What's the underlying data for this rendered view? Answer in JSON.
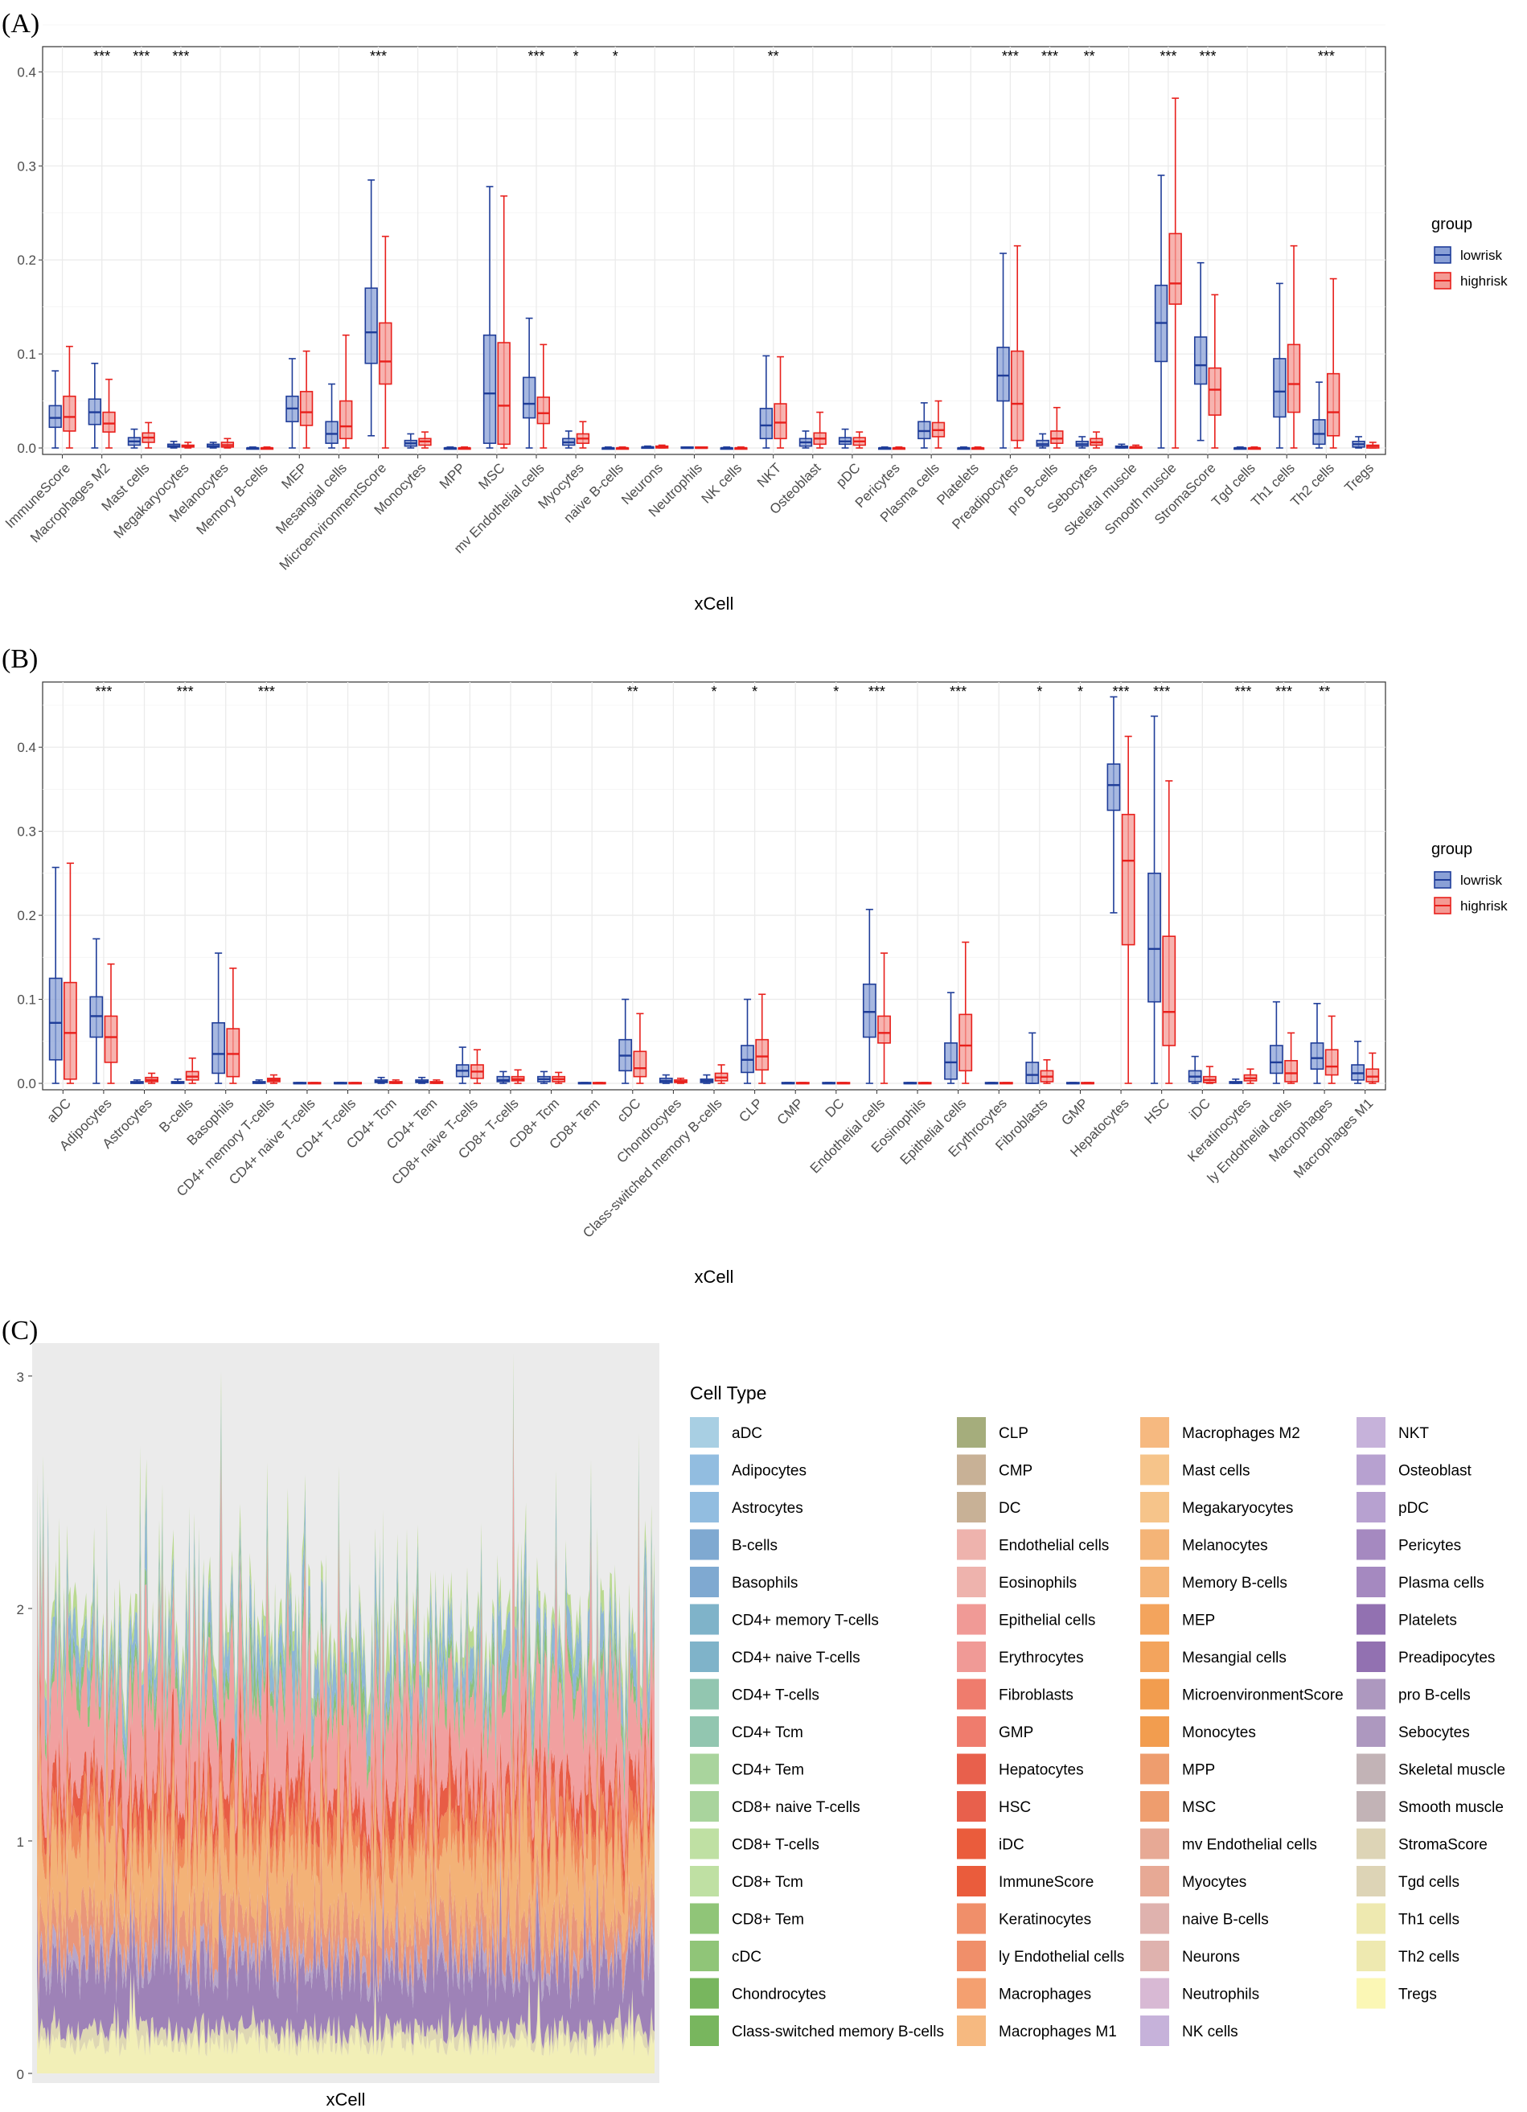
{
  "panels": [
    {
      "label": "(A)",
      "type": "box",
      "xlabel": "xCell",
      "legend": {
        "title": "group",
        "items": [
          "lowrisk",
          "highrisk"
        ]
      },
      "colors": {
        "lowrisk": "#1f3d99",
        "highrisk": "#e8201c"
      },
      "ylim": [
        0,
        0.42
      ],
      "yticks": [
        "0.0",
        "0.1",
        "0.2",
        "0.3",
        "0.4"
      ],
      "categories": [
        "ImmuneScore",
        "Macrophages M2",
        "Mast cells",
        "Megakaryocytes",
        "Melanocytes",
        "Memory B-cells",
        "MEP",
        "Mesangial cells",
        "MicroenvironmentScore",
        "Monocytes",
        "MPP",
        "MSC",
        "mv Endothelial cells",
        "Myocytes",
        "naive B-cells",
        "Neurons",
        "Neutrophils",
        "NK cells",
        "NKT",
        "Osteoblast",
        "pDC",
        "Pericytes",
        "Plasma cells",
        "Platelets",
        "Preadipocytes",
        "pro B-cells",
        "Sebocytes",
        "Skeletal muscle",
        "Smooth muscle",
        "StromaScore",
        "Tgd cells",
        "Th1 cells",
        "Th2 cells",
        "Tregs"
      ],
      "significance": [
        "",
        "***",
        "***",
        "***",
        "",
        "",
        "",
        "",
        "***",
        "",
        "",
        "",
        "***",
        "*",
        "*",
        "",
        "",
        "",
        "**",
        "",
        "",
        "",
        "",
        "",
        "***",
        "***",
        "**",
        "",
        "***",
        "***",
        "",
        "",
        "***",
        ""
      ],
      "lowrisk": [
        [
          0,
          0.022,
          0.032,
          0.045,
          0.082
        ],
        [
          0,
          0.025,
          0.038,
          0.052,
          0.09
        ],
        [
          0,
          0.003,
          0.007,
          0.011,
          0.02
        ],
        [
          0,
          0.001,
          0.002,
          0.004,
          0.007
        ],
        [
          0,
          0.001,
          0.002,
          0.004,
          0.006
        ],
        [
          0,
          0,
          0,
          0,
          0.001
        ],
        [
          0,
          0.028,
          0.042,
          0.055,
          0.095
        ],
        [
          0,
          0.005,
          0.015,
          0.028,
          0.068
        ],
        [
          0.013,
          0.09,
          0.123,
          0.17,
          0.285
        ],
        [
          0,
          0.002,
          0.005,
          0.008,
          0.015
        ],
        [
          0,
          0,
          0,
          0,
          0.001
        ],
        [
          0,
          0.005,
          0.058,
          0.12,
          0.278
        ],
        [
          0,
          0.032,
          0.047,
          0.075,
          0.138
        ],
        [
          0,
          0.003,
          0.006,
          0.01,
          0.018
        ],
        [
          0,
          0,
          0,
          0,
          0.001
        ],
        [
          0,
          0,
          0.001,
          0.001,
          0.002
        ],
        [
          0,
          0,
          0,
          0.001,
          0.001
        ],
        [
          0,
          0,
          0,
          0,
          0.001
        ],
        [
          0,
          0.01,
          0.024,
          0.042,
          0.098
        ],
        [
          0,
          0.002,
          0.006,
          0.01,
          0.018
        ],
        [
          0,
          0.004,
          0.007,
          0.011,
          0.02
        ],
        [
          0,
          0,
          0,
          0,
          0.001
        ],
        [
          0,
          0.01,
          0.018,
          0.028,
          0.048
        ],
        [
          0,
          0,
          0,
          0,
          0.001
        ],
        [
          0,
          0.05,
          0.077,
          0.107,
          0.207
        ],
        [
          0,
          0.002,
          0.004,
          0.008,
          0.015
        ],
        [
          0,
          0.002,
          0.004,
          0.007,
          0.012
        ],
        [
          0,
          0,
          0.001,
          0.002,
          0.004
        ],
        [
          0,
          0.092,
          0.133,
          0.173,
          0.29
        ],
        [
          0.008,
          0.068,
          0.088,
          0.118,
          0.197
        ],
        [
          0,
          0,
          0,
          0,
          0.001
        ],
        [
          0,
          0.033,
          0.06,
          0.095,
          0.175
        ],
        [
          0,
          0.004,
          0.015,
          0.03,
          0.07
        ],
        [
          0,
          0.001,
          0.004,
          0.007,
          0.012
        ]
      ],
      "highrisk": [
        [
          0,
          0.018,
          0.033,
          0.055,
          0.108
        ],
        [
          0,
          0.017,
          0.026,
          0.038,
          0.073
        ],
        [
          0,
          0.006,
          0.011,
          0.016,
          0.027
        ],
        [
          0,
          0.001,
          0.002,
          0.003,
          0.006
        ],
        [
          0,
          0.001,
          0.003,
          0.006,
          0.01
        ],
        [
          0,
          0,
          0,
          0,
          0.001
        ],
        [
          0,
          0.024,
          0.038,
          0.06,
          0.103
        ],
        [
          0,
          0.01,
          0.023,
          0.05,
          0.12
        ],
        [
          0,
          0.068,
          0.092,
          0.133,
          0.225
        ],
        [
          0,
          0.003,
          0.007,
          0.01,
          0.017
        ],
        [
          0,
          0,
          0,
          0,
          0.001
        ],
        [
          0,
          0.004,
          0.045,
          0.112,
          0.268
        ],
        [
          0,
          0.026,
          0.037,
          0.054,
          0.11
        ],
        [
          0,
          0.005,
          0.01,
          0.015,
          0.028
        ],
        [
          0,
          0,
          0,
          0,
          0.001
        ],
        [
          0,
          0,
          0.001,
          0.002,
          0.003
        ],
        [
          0,
          0,
          0,
          0.001,
          0.001
        ],
        [
          0,
          0,
          0,
          0,
          0.001
        ],
        [
          0,
          0.01,
          0.027,
          0.047,
          0.097
        ],
        [
          0,
          0.004,
          0.01,
          0.016,
          0.038
        ],
        [
          0,
          0.003,
          0.007,
          0.011,
          0.017
        ],
        [
          0,
          0,
          0,
          0,
          0.001
        ],
        [
          0,
          0.012,
          0.019,
          0.027,
          0.05
        ],
        [
          0,
          0,
          0,
          0,
          0.001
        ],
        [
          0,
          0.008,
          0.047,
          0.103,
          0.215
        ],
        [
          0,
          0.005,
          0.01,
          0.018,
          0.043
        ],
        [
          0,
          0.003,
          0.006,
          0.01,
          0.017
        ],
        [
          0,
          0,
          0.001,
          0.001,
          0.003
        ],
        [
          0,
          0.153,
          0.175,
          0.228,
          0.372
        ],
        [
          0,
          0.035,
          0.062,
          0.085,
          0.163
        ],
        [
          0,
          0,
          0,
          0,
          0.001
        ],
        [
          0,
          0.038,
          0.068,
          0.11,
          0.215
        ],
        [
          0,
          0.013,
          0.038,
          0.079,
          0.18
        ],
        [
          0,
          0,
          0.002,
          0.003,
          0.006
        ]
      ]
    },
    {
      "label": "(B)",
      "type": "box",
      "xlabel": "xCell",
      "legend": {
        "title": "group",
        "items": [
          "lowrisk",
          "highrisk"
        ]
      },
      "colors": {
        "lowrisk": "#1f3d99",
        "highrisk": "#e8201c"
      },
      "ylim": [
        0,
        0.47
      ],
      "yticks": [
        "0.0",
        "0.1",
        "0.2",
        "0.3",
        "0.4"
      ],
      "categories": [
        "aDC",
        "Adipocytes",
        "Astrocytes",
        "B-cells",
        "Basophils",
        "CD4+ memory T-cells",
        "CD4+ naive T-cells",
        "CD4+ T-cells",
        "CD4+ Tcm",
        "CD4+ Tem",
        "CD8+ naive T-cells",
        "CD8+ T-cells",
        "CD8+ Tcm",
        "CD8+ Tem",
        "cDC",
        "Chondrocytes",
        "Class-switched memory B-cells",
        "CLP",
        "CMP",
        "DC",
        "Endothelial cells",
        "Eosinophils",
        "Epithelial cells",
        "Erythrocytes",
        "Fibroblasts",
        "GMP",
        "Hepatocytes",
        "HSC",
        "iDC",
        "Keratinocytes",
        "ly Endothelial cells",
        "Macrophages",
        "Macrophages M1"
      ],
      "significance": [
        "",
        "***",
        "",
        "***",
        "",
        "***",
        "",
        "",
        "",
        "",
        "",
        "",
        "",
        "",
        "**",
        "",
        "*",
        "*",
        "",
        "*",
        "***",
        "",
        "***",
        "",
        "*",
        "*",
        "***",
        "***",
        "",
        "***",
        "***",
        "**",
        ""
      ],
      "lowrisk": [
        [
          0,
          0.028,
          0.072,
          0.125,
          0.257
        ],
        [
          0,
          0.055,
          0.08,
          0.103,
          0.172
        ],
        [
          0,
          0,
          0.001,
          0.002,
          0.004
        ],
        [
          0,
          0,
          0.001,
          0.002,
          0.005
        ],
        [
          0,
          0.012,
          0.035,
          0.072,
          0.155
        ],
        [
          0,
          0,
          0.001,
          0.002,
          0.004
        ],
        [
          0,
          0,
          0,
          0.001,
          0.001
        ],
        [
          0,
          0,
          0,
          0.001,
          0.001
        ],
        [
          0,
          0.001,
          0.002,
          0.004,
          0.007
        ],
        [
          0,
          0.001,
          0.002,
          0.004,
          0.007
        ],
        [
          0,
          0.008,
          0.015,
          0.022,
          0.043
        ],
        [
          0,
          0.002,
          0.004,
          0.008,
          0.014
        ],
        [
          0,
          0.002,
          0.005,
          0.008,
          0.014
        ],
        [
          0,
          0,
          0,
          0.001,
          0.001
        ],
        [
          0,
          0.015,
          0.033,
          0.052,
          0.1
        ],
        [
          0,
          0.001,
          0.003,
          0.006,
          0.01
        ],
        [
          0,
          0.001,
          0.003,
          0.005,
          0.01
        ],
        [
          0,
          0.013,
          0.028,
          0.045,
          0.1
        ],
        [
          0,
          0,
          0,
          0.001,
          0.001
        ],
        [
          0,
          0,
          0,
          0.001,
          0.001
        ],
        [
          0,
          0.055,
          0.085,
          0.118,
          0.207
        ],
        [
          0,
          0,
          0,
          0.001,
          0.001
        ],
        [
          0,
          0.005,
          0.025,
          0.048,
          0.108
        ],
        [
          0,
          0,
          0,
          0.001,
          0.001
        ],
        [
          0,
          0,
          0.01,
          0.025,
          0.06
        ],
        [
          0,
          0,
          0,
          0.001,
          0.001
        ],
        [
          0.203,
          0.325,
          0.355,
          0.38,
          0.46
        ],
        [
          0,
          0.097,
          0.16,
          0.25,
          0.437
        ],
        [
          0,
          0.002,
          0.008,
          0.015,
          0.032
        ],
        [
          0,
          0,
          0.001,
          0.002,
          0.005
        ],
        [
          0,
          0.012,
          0.025,
          0.045,
          0.097
        ],
        [
          0,
          0.017,
          0.03,
          0.048,
          0.095
        ],
        [
          0,
          0.004,
          0.012,
          0.022,
          0.05
        ]
      ],
      "highrisk": [
        [
          0,
          0.005,
          0.06,
          0.12,
          0.262
        ],
        [
          0,
          0.025,
          0.055,
          0.08,
          0.142
        ],
        [
          0,
          0.002,
          0.004,
          0.007,
          0.012
        ],
        [
          0,
          0.004,
          0.008,
          0.014,
          0.03
        ],
        [
          0,
          0.008,
          0.035,
          0.065,
          0.137
        ],
        [
          0,
          0.002,
          0.004,
          0.006,
          0.01
        ],
        [
          0,
          0,
          0,
          0.001,
          0.001
        ],
        [
          0,
          0,
          0,
          0.001,
          0.001
        ],
        [
          0,
          0,
          0.001,
          0.002,
          0.004
        ],
        [
          0,
          0,
          0.001,
          0.002,
          0.004
        ],
        [
          0,
          0.006,
          0.014,
          0.022,
          0.04
        ],
        [
          0,
          0.003,
          0.005,
          0.008,
          0.016
        ],
        [
          0,
          0.002,
          0.005,
          0.008,
          0.013
        ],
        [
          0,
          0,
          0,
          0.001,
          0.001
        ],
        [
          0,
          0.008,
          0.018,
          0.038,
          0.083
        ],
        [
          0,
          0.001,
          0.002,
          0.004,
          0.006
        ],
        [
          0,
          0.003,
          0.007,
          0.012,
          0.022
        ],
        [
          0,
          0.016,
          0.032,
          0.052,
          0.106
        ],
        [
          0,
          0,
          0,
          0.001,
          0.001
        ],
        [
          0,
          0,
          0,
          0.001,
          0.001
        ],
        [
          0,
          0.048,
          0.06,
          0.08,
          0.155
        ],
        [
          0,
          0,
          0,
          0.001,
          0.001
        ],
        [
          0,
          0.015,
          0.045,
          0.082,
          0.168
        ],
        [
          0,
          0,
          0,
          0.001,
          0.001
        ],
        [
          0,
          0.002,
          0.008,
          0.015,
          0.028
        ],
        [
          0,
          0,
          0,
          0.001,
          0.001
        ],
        [
          0,
          0.165,
          0.265,
          0.32,
          0.413
        ],
        [
          0,
          0.045,
          0.085,
          0.175,
          0.36
        ],
        [
          0,
          0.001,
          0.004,
          0.008,
          0.02
        ],
        [
          0,
          0.003,
          0.006,
          0.01,
          0.017
        ],
        [
          0,
          0.002,
          0.012,
          0.027,
          0.06
        ],
        [
          0,
          0.01,
          0.02,
          0.04,
          0.08
        ],
        [
          0,
          0.002,
          0.008,
          0.017,
          0.036
        ]
      ]
    },
    {
      "label": "(C)",
      "type": "stacked-area",
      "xlabel": "xCell",
      "ylim": [
        0,
        3.1
      ],
      "yticks": [
        "0",
        "1",
        "2",
        "3"
      ],
      "legend": {
        "title": "Cell Type",
        "columns": [
          [
            "aDC",
            "Adipocytes",
            "Astrocytes",
            "B-cells",
            "Basophils",
            "CD4+ memory T-cells",
            "CD4+ naive T-cells",
            "CD4+ T-cells",
            "CD4+ Tcm",
            "CD4+ Tem",
            "CD8+ naive T-cells",
            "CD8+ T-cells",
            "CD8+ Tcm",
            "CD8+ Tem",
            "cDC",
            "Chondrocytes",
            "Class-switched memory B-cells"
          ],
          [
            "CLP",
            "CMP",
            "DC",
            "Endothelial cells",
            "Eosinophils",
            "Epithelial cells",
            "Erythrocytes",
            "Fibroblasts",
            "GMP",
            "Hepatocytes",
            "HSC",
            "iDC",
            "ImmuneScore",
            "Keratinocytes",
            "ly Endothelial cells",
            "Macrophages",
            "Macrophages M1"
          ],
          [
            "Macrophages M2",
            "Mast cells",
            "Megakaryocytes",
            "Melanocytes",
            "Memory B-cells",
            "MEP",
            "Mesangial cells",
            "MicroenvironmentScore",
            "Monocytes",
            "MPP",
            "MSC",
            "mv Endothelial cells",
            "Myocytes",
            "naive B-cells",
            "Neurons",
            "Neutrophils",
            "NK cells"
          ],
          [
            "NKT",
            "Osteoblast",
            "pDC",
            "Pericytes",
            "Plasma cells",
            "Platelets",
            "Preadipocytes",
            "pro B-cells",
            "Sebocytes",
            "Skeletal muscle",
            "Smooth muscle",
            "StromaScore",
            "Tgd cells",
            "Th1 cells",
            "Th2 cells",
            "Tregs"
          ]
        ]
      },
      "band_colors": [
        "#f2efb7",
        "#ded7b3",
        "#9e82b7",
        "#b7a6c9",
        "#e9967a",
        "#f3b277",
        "#f08a5a",
        "#e85c45",
        "#f1a0a0",
        "#8cc17a",
        "#8eb6d6",
        "#b9d98f"
      ],
      "band_means": [
        0.13,
        0.05,
        0.25,
        0.06,
        0.14,
        0.27,
        0.13,
        0.12,
        0.38,
        0.07,
        0.14,
        0.07
      ]
    }
  ]
}
